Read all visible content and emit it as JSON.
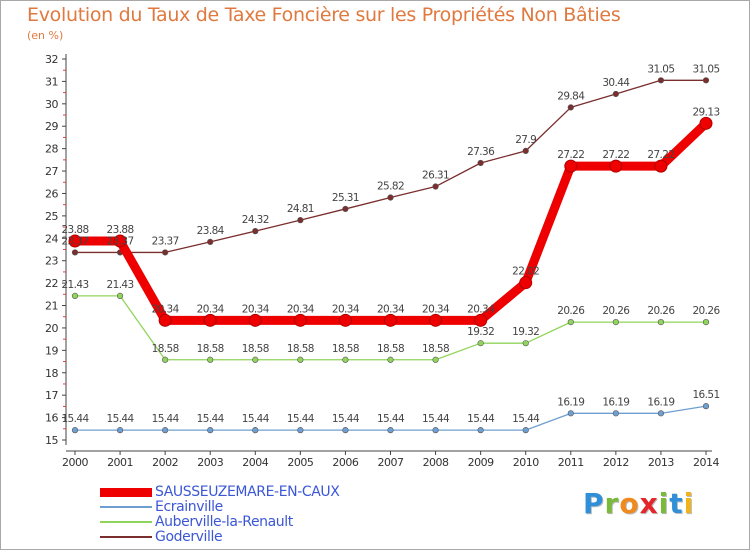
{
  "title": "Evolution du Taux de Taxe Foncière sur les Propriétés Non Bâties",
  "unit_label": "(en %)",
  "chart_data": {
    "type": "line",
    "title": "Evolution du Taux de Taxe Foncière sur les Propriétés Non Bâties",
    "ylabel": "(en %)",
    "xlabel": "",
    "ylim": [
      15,
      32
    ],
    "yticks": [
      15,
      16,
      17,
      18,
      19,
      20,
      21,
      22,
      23,
      24,
      25,
      26,
      27,
      28,
      29,
      30,
      31,
      32
    ],
    "grid": false,
    "categories": [
      "2000",
      "2001",
      "2002",
      "2003",
      "2004",
      "2005",
      "2006",
      "2007",
      "2008",
      "2009",
      "2010",
      "2011",
      "2012",
      "2013",
      "2014"
    ],
    "series": [
      {
        "name": "Goderville",
        "color": "#7a2e2e",
        "values": [
          23.37,
          23.37,
          23.37,
          23.84,
          24.32,
          24.81,
          25.31,
          25.82,
          26.31,
          27.36,
          27.9,
          29.84,
          30.44,
          31.05,
          31.05
        ],
        "labels": [
          "23.37",
          "23.37",
          "23.37",
          "23.84",
          "24.32",
          "24.81",
          "25.31",
          "25.82",
          "26.31",
          "27.36",
          "27.9",
          "29.84",
          "30.44",
          "31.05",
          "31.05"
        ]
      },
      {
        "name": "Auberville-la-Renault",
        "color": "#90d45c",
        "values": [
          21.43,
          21.43,
          18.58,
          18.58,
          18.58,
          18.58,
          18.58,
          18.58,
          18.58,
          19.32,
          19.32,
          20.26,
          20.26,
          20.26,
          20.26
        ],
        "labels": [
          "21.43",
          "21.43",
          "18.58",
          "18.58",
          "18.58",
          "18.58",
          "18.58",
          "18.58",
          "18.58",
          "19.32",
          "19.32",
          "20.26",
          "20.26",
          "20.26",
          "20.26"
        ]
      },
      {
        "name": "Ecrainville",
        "color": "#6f9fd0",
        "values": [
          15.44,
          15.44,
          15.44,
          15.44,
          15.44,
          15.44,
          15.44,
          15.44,
          15.44,
          15.44,
          15.44,
          16.19,
          16.19,
          16.19,
          16.51
        ],
        "labels": [
          "15.44",
          "15.44",
          "15.44",
          "15.44",
          "15.44",
          "15.44",
          "15.44",
          "15.44",
          "15.44",
          "15.44",
          "15.44",
          "16.19",
          "16.19",
          "16.19",
          "16.51"
        ]
      },
      {
        "name": "SAUSSEUZEMARE-EN-CAUX",
        "color": "#ee0000",
        "values": [
          23.88,
          23.88,
          20.34,
          20.34,
          20.34,
          20.34,
          20.34,
          20.34,
          20.34,
          20.34,
          22.02,
          27.22,
          27.22,
          27.22,
          29.13
        ],
        "labels": [
          "23.88",
          "23.88",
          "20.34",
          "20.34",
          "20.34",
          "20.34",
          "20.34",
          "20.34",
          "20.34",
          "20.34",
          "22.02",
          "27.22",
          "27.22",
          "27.22",
          "29.13"
        ]
      }
    ]
  },
  "legend": [
    {
      "name": "SAUSSEUZEMARE-EN-CAUX",
      "color": "#ee0000"
    },
    {
      "name": "Ecrainville",
      "color": "#6f9fd0"
    },
    {
      "name": "Auberville-la-Renault",
      "color": "#90d45c"
    },
    {
      "name": "Goderville",
      "color": "#7a2e2e"
    }
  ],
  "logo": {
    "letters": [
      "P",
      "r",
      "o",
      "x",
      "i",
      "t",
      "i"
    ],
    "colors": [
      "#2f8fd8",
      "#7aba3a",
      "#f08a1c",
      "#e2262a",
      "#7aba3a",
      "#2f8fd8",
      "#f0b31c"
    ]
  }
}
